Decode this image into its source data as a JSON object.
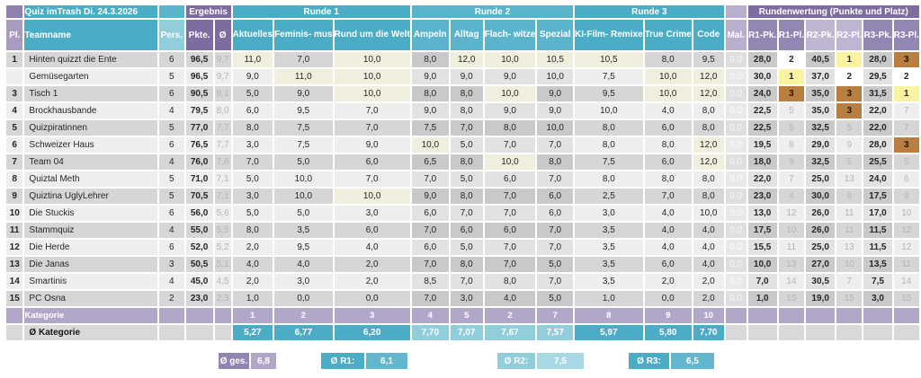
{
  "title": "Quiz imTrash Di. 24.3.2026",
  "colors": {
    "teal": "#4bacc6",
    "teal_light": "#92cddc",
    "purple": "#7e6b9f",
    "purple_light": "#b3a7c9",
    "medal_gold": "#fcf3a2",
    "medal_silver": "#ffffff",
    "medal_bronze": "#b97f40",
    "max_highlight": "#f0eedc"
  },
  "table": {
    "groups": {
      "ergebnis": "Ergebnis",
      "runde1": "Runde 1",
      "runde2": "Runde 2",
      "runde3": "Runde 3",
      "rundenwertung": "Rundenwertung (Punkte und Platz)"
    },
    "columns": {
      "pl": "Pl.",
      "team": "Teamname",
      "pers": "Pers.",
      "pkte": "Pkte.",
      "avg": "Ø",
      "cats": [
        "Aktuelles",
        "Feminis-\nmus",
        "Rund um\ndie Welt",
        "Ampeln",
        "Alltag",
        "Flach-\nwitze",
        "Spezial",
        "KI-Film-\nRemixe",
        "True\nCrime",
        "Code"
      ],
      "mal": "Mal.",
      "rw": [
        "R1-Pk.",
        "R1-Pl.",
        "R2-Pk.",
        "R2-Pl.",
        "R3-Pk.",
        "R3-Pl."
      ]
    },
    "rows": [
      {
        "pl": "1",
        "team": "Hinten quizzt die Ente",
        "pers": "6",
        "pkte": "96,5",
        "avg": "9,7",
        "scores": [
          "11,0",
          "7,0",
          "10,0",
          "8,0",
          "12,0",
          "10,0",
          "10,5",
          "10,5",
          "8,0",
          "9,5"
        ],
        "mal": "0,0",
        "rw": [
          "28,0",
          "2",
          "40,5",
          "1",
          "28,0",
          "3"
        ]
      },
      {
        "pl": "",
        "team": "Gemüsegarten",
        "pers": "5",
        "pkte": "96,5",
        "avg": "9,7",
        "scores": [
          "9,0",
          "11,0",
          "10,0",
          "9,0",
          "9,0",
          "9,0",
          "10,0",
          "7,5",
          "10,0",
          "12,0"
        ],
        "mal": "0,0",
        "rw": [
          "30,0",
          "1",
          "37,0",
          "2",
          "29,5",
          "2"
        ]
      },
      {
        "pl": "3",
        "team": "Tisch 1",
        "pers": "6",
        "pkte": "90,5",
        "avg": "9,1",
        "scores": [
          "5,0",
          "9,0",
          "10,0",
          "8,0",
          "8,0",
          "10,0",
          "9,0",
          "9,5",
          "10,0",
          "12,0"
        ],
        "mal": "0,0",
        "rw": [
          "24,0",
          "3",
          "35,0",
          "3",
          "31,5",
          "1"
        ]
      },
      {
        "pl": "4",
        "team": "Brockhausbande",
        "pers": "4",
        "pkte": "79,5",
        "avg": "8,0",
        "scores": [
          "6,0",
          "9,5",
          "7,0",
          "9,0",
          "8,0",
          "9,0",
          "9,0",
          "10,0",
          "4,0",
          "8,0"
        ],
        "mal": "0,0",
        "rw": [
          "22,5",
          "5",
          "35,0",
          "3",
          "22,0",
          "7"
        ]
      },
      {
        "pl": "5",
        "team": "Quizpiratinnen",
        "pers": "5",
        "pkte": "77,0",
        "avg": "7,7",
        "scores": [
          "8,0",
          "7,5",
          "7,0",
          "7,5",
          "7,0",
          "8,0",
          "10,0",
          "8,0",
          "6,0",
          "8,0"
        ],
        "mal": "0,0",
        "rw": [
          "22,5",
          "5",
          "32,5",
          "5",
          "22,0",
          "7"
        ]
      },
      {
        "pl": "6",
        "team": "Schweizer Haus",
        "pers": "6",
        "pkte": "76,5",
        "avg": "7,7",
        "scores": [
          "3,0",
          "7,5",
          "9,0",
          "10,0",
          "5,0",
          "7,0",
          "7,0",
          "8,0",
          "8,0",
          "12,0"
        ],
        "mal": "0,0",
        "rw": [
          "19,5",
          "8",
          "29,0",
          "9",
          "28,0",
          "3"
        ]
      },
      {
        "pl": "7",
        "team": "Team 04",
        "pers": "4",
        "pkte": "76,0",
        "avg": "7,6",
        "scores": [
          "7,0",
          "5,0",
          "6,0",
          "6,5",
          "8,0",
          "10,0",
          "8,0",
          "7,5",
          "6,0",
          "12,0"
        ],
        "mal": "0,0",
        "rw": [
          "18,0",
          "9",
          "32,5",
          "5",
          "25,5",
          "5"
        ]
      },
      {
        "pl": "8",
        "team": "Quiztal Meth",
        "pers": "5",
        "pkte": "71,0",
        "avg": "7,1",
        "scores": [
          "5,0",
          "10,0",
          "7,0",
          "7,0",
          "5,0",
          "6,0",
          "7,0",
          "8,0",
          "8,0",
          "8,0"
        ],
        "mal": "0,0",
        "rw": [
          "22,0",
          "7",
          "25,0",
          "13",
          "24,0",
          "6"
        ]
      },
      {
        "pl": "9",
        "team": "Quiztina UglyLehrer",
        "pers": "5",
        "pkte": "70,5",
        "avg": "7,1",
        "scores": [
          "3,0",
          "10,0",
          "10,0",
          "9,0",
          "8,0",
          "7,0",
          "6,0",
          "2,5",
          "7,0",
          "8,0"
        ],
        "mal": "0,0",
        "rw": [
          "23,0",
          "4",
          "30,0",
          "8",
          "17,5",
          "9"
        ]
      },
      {
        "pl": "10",
        "team": "Die Stuckis",
        "pers": "6",
        "pkte": "56,0",
        "avg": "5,6",
        "scores": [
          "5,0",
          "5,0",
          "3,0",
          "6,0",
          "7,0",
          "7,0",
          "6,0",
          "3,0",
          "4,0",
          "10,0"
        ],
        "mal": "0,0",
        "rw": [
          "13,0",
          "12",
          "26,0",
          "11",
          "17,0",
          "10"
        ]
      },
      {
        "pl": "11",
        "team": "Stammquiz",
        "pers": "4",
        "pkte": "55,0",
        "avg": "5,5",
        "scores": [
          "8,0",
          "3,5",
          "6,0",
          "7,0",
          "6,0",
          "6,0",
          "7,0",
          "3,5",
          "4,0",
          "4,0"
        ],
        "mal": "0,0",
        "rw": [
          "17,5",
          "10",
          "26,0",
          "11",
          "11,5",
          "12"
        ]
      },
      {
        "pl": "12",
        "team": "Die Herde",
        "pers": "6",
        "pkte": "52,0",
        "avg": "5,2",
        "scores": [
          "2,0",
          "9,5",
          "4,0",
          "6,0",
          "5,0",
          "7,0",
          "7,0",
          "3,5",
          "4,0",
          "4,0"
        ],
        "mal": "0,0",
        "rw": [
          "15,5",
          "11",
          "25,0",
          "13",
          "11,5",
          "12"
        ]
      },
      {
        "pl": "13",
        "team": "Die Janas",
        "pers": "3",
        "pkte": "50,5",
        "avg": "5,1",
        "scores": [
          "4,0",
          "4,0",
          "2,0",
          "7,0",
          "8,0",
          "7,0",
          "5,0",
          "3,5",
          "6,0",
          "4,0"
        ],
        "mal": "0,0",
        "rw": [
          "10,0",
          "13",
          "27,0",
          "10",
          "13,5",
          "11"
        ]
      },
      {
        "pl": "14",
        "team": "Smartinis",
        "pers": "4",
        "pkte": "45,0",
        "avg": "4,5",
        "scores": [
          "2,0",
          "3,0",
          "2,0",
          "8,5",
          "7,0",
          "8,0",
          "7,0",
          "3,5",
          "2,0",
          "2,0"
        ],
        "mal": "0,0",
        "rw": [
          "7,0",
          "14",
          "30,5",
          "7",
          "7,5",
          "14"
        ]
      },
      {
        "pl": "15",
        "team": "PC Osna",
        "pers": "2",
        "pkte": "23,0",
        "avg": "2,3",
        "scores": [
          "1,0",
          "0,0",
          "0,0",
          "7,0",
          "3,0",
          "4,0",
          "5,0",
          "1,0",
          "0,0",
          "2,0"
        ],
        "mal": "0,0",
        "rw": [
          "1,0",
          "15",
          "19,0",
          "15",
          "3,0",
          "15"
        ]
      }
    ],
    "kategorie": {
      "label": "Kategorie",
      "numbers": [
        "1",
        "2",
        "3",
        "4",
        "5",
        "2",
        "7",
        "8",
        "9",
        "10"
      ]
    },
    "avg_kategorie": {
      "label": "Ø Kategorie",
      "values": [
        "5,27",
        "6,77",
        "6,20",
        "7,70",
        "7,07",
        "7,67",
        "7,57",
        "5,97",
        "5,80",
        "7,70"
      ]
    }
  },
  "summary_boxes": [
    {
      "label": "Ø ges.",
      "value": "6,8"
    },
    {
      "label": "Ø R1:",
      "value": "6,1"
    },
    {
      "label": "Ø R2:",
      "value": "7,5"
    },
    {
      "label": "Ø R3:",
      "value": "6,5"
    }
  ]
}
